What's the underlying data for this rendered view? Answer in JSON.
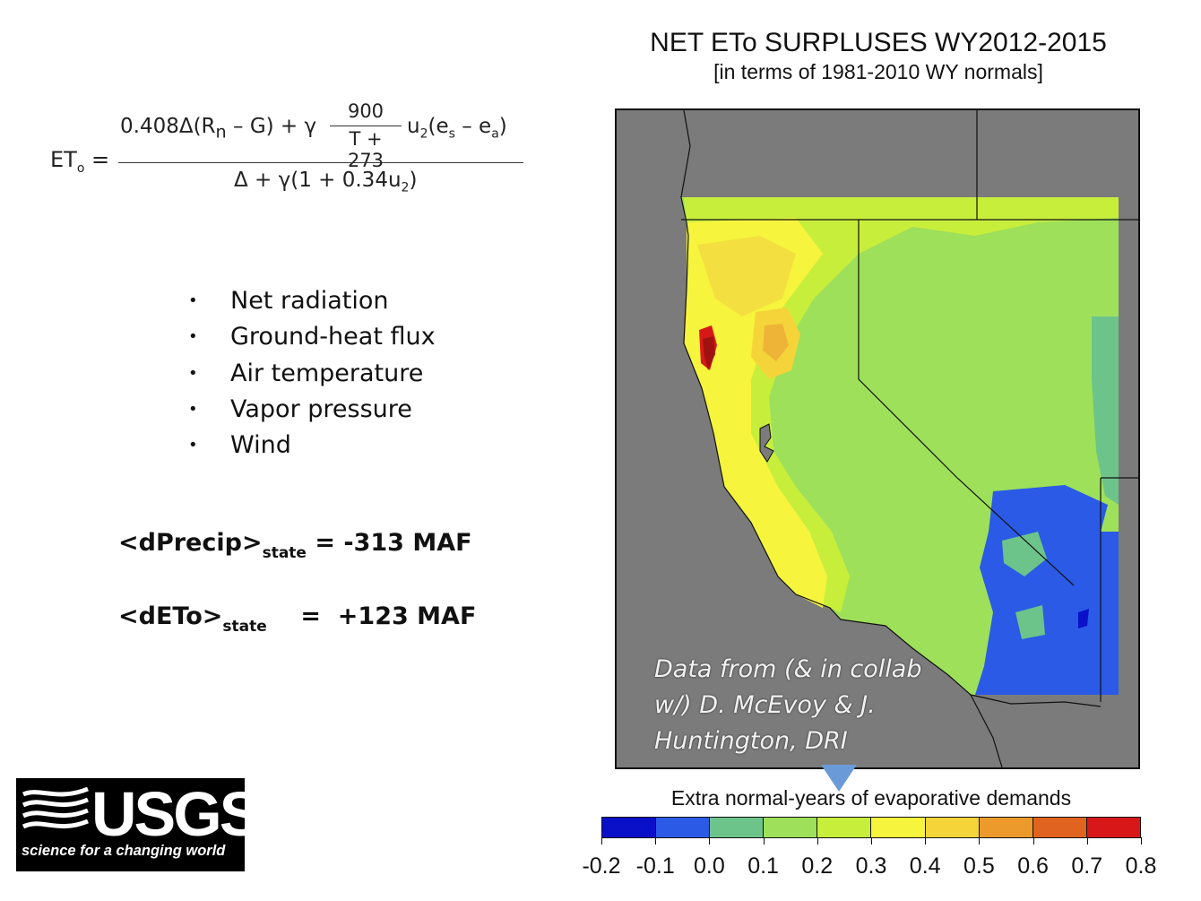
{
  "header": {
    "title": "NET ETo SURPLUSES WY2012-2015",
    "subtitle": "[in terms of 1981-2010 WY normals]"
  },
  "equation": {
    "lhs": "ET",
    "lhs_sub": "o",
    "lhs_eq": " =",
    "numerator_left": "0.408Δ(R",
    "numerator_left_sub": "n",
    "numerator_mid": " – G) + γ",
    "frac_top": "900",
    "frac_bottom": "T + 273",
    "numerator_right": "u",
    "numerator_right_sub": "2",
    "numerator_tail": "(e",
    "numerator_tail_sub1": "s",
    "numerator_tail2": " – e",
    "numerator_tail_sub2": "a",
    "numerator_end": ")",
    "denominator": "Δ + γ(1 + 0.34u",
    "denominator_sub": "2",
    "denominator_end": ")"
  },
  "bullets": {
    "symbol": "•",
    "items": [
      "Net radiation",
      "Ground-heat flux",
      "Air temperature",
      "Vapor pressure",
      "Wind"
    ]
  },
  "stats": {
    "precip_label": "<dPrecip>",
    "precip_sub": "state",
    "precip_value": " = -313 MAF",
    "eto_label": "<dETo>",
    "eto_sub": "state",
    "eto_value": "    =  +123 MAF"
  },
  "map": {
    "credit_line1": "Data from (& in collab",
    "credit_line2": "w/) D. McEvoy & J.",
    "credit_line3": "Huntington, DRI",
    "background_color": "#7b7b7b"
  },
  "colorbar": {
    "title": "Extra normal-years of evaporative demands",
    "ticks": [
      "-0.2",
      "-0.1",
      "0.0",
      "0.1",
      "0.2",
      "0.3",
      "0.4",
      "0.5",
      "0.6",
      "0.7",
      "0.8"
    ],
    "colors": [
      "#0a10c8",
      "#2a5ae6",
      "#6cc48a",
      "#9ee05a",
      "#c8ee3c",
      "#f6f43c",
      "#f5d43a",
      "#ec9a2c",
      "#e06420",
      "#d81818"
    ],
    "marker_value": 0.24
  },
  "logo": {
    "wordmark": "USGS",
    "tagline": "science for a changing world"
  }
}
